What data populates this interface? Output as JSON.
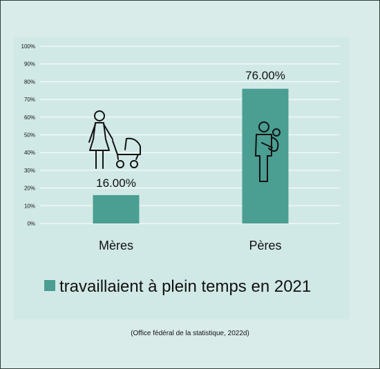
{
  "chart_data": {
    "type": "bar",
    "categories": [
      "Mères",
      "Pères"
    ],
    "series": [
      {
        "name": "travaillaient à plein temps en 2021",
        "values": [
          16.0,
          76.0
        ]
      }
    ],
    "data_labels": [
      "16.00%",
      "76.00%"
    ],
    "ylim": [
      0,
      100
    ],
    "yticks": [
      "0%",
      "10%",
      "20%",
      "30%",
      "40%",
      "50%",
      "60%",
      "70%",
      "80%",
      "90%",
      "100%"
    ],
    "grid": true,
    "legend": "bottom",
    "bar_color": "#4a9e92",
    "grid_color": "#ffffff",
    "icons": [
      "mother-with-stroller-icon",
      "father-with-baby-icon"
    ]
  },
  "source_note": "(Office fédéral de la statistique, 2022d)"
}
